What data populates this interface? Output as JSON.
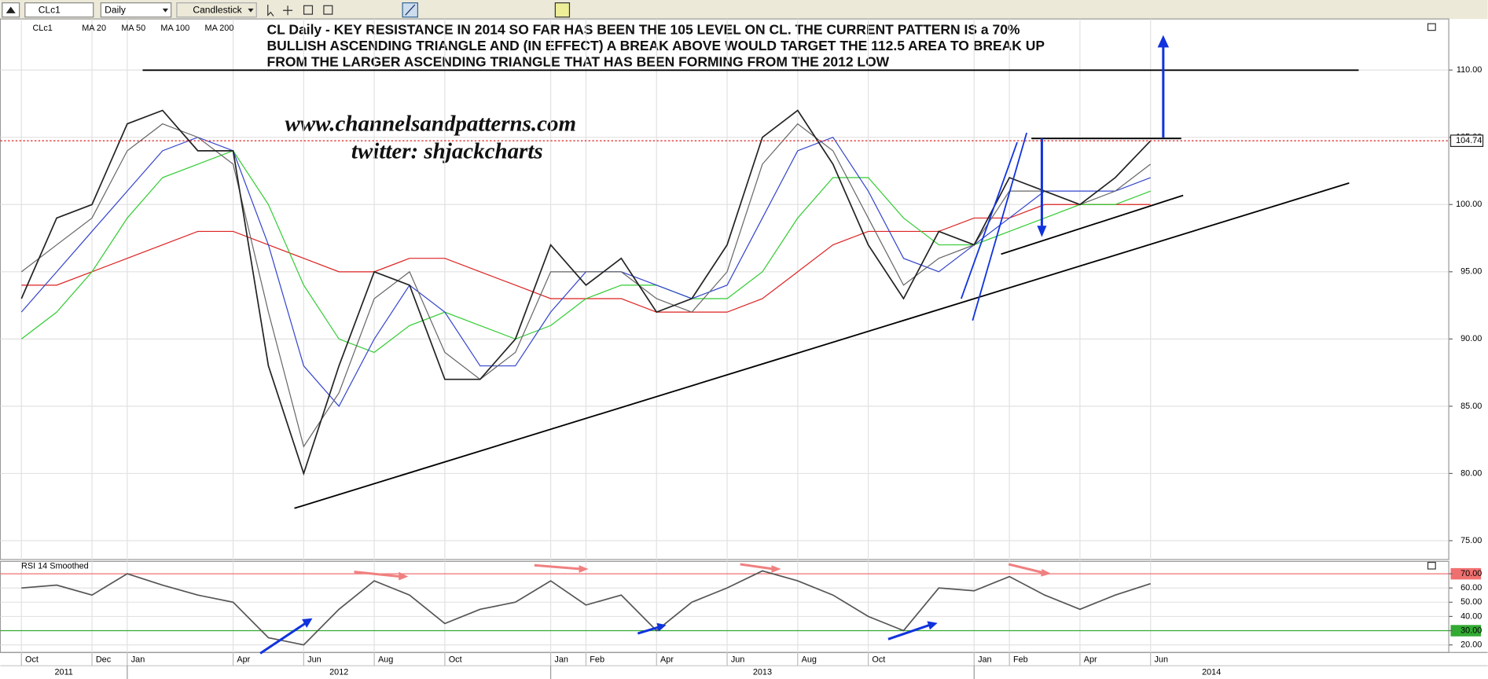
{
  "toolbar": {
    "symbol": "CLc1",
    "interval": "Daily",
    "style": "Candlestick"
  },
  "chart_data": [
    {
      "type": "line",
      "annotations": [
        "CL Daily - KEY RESISTANCE IN 2014 SO FAR HAS BEEN THE 105 LEVEL ON CL. THE CURRENT PATTERN IS a 70%",
        "BULLISH ASCENDING TRIANGLE AND (IN EFFECT) A BREAK ABOVE WOULD TARGET THE 112.5 AREA TO BREAK UP",
        "FROM THE LARGER ASCENDING TRIANGLE THAT HAS BEEN FORMING FROM THE 2012 LOW"
      ],
      "watermark": [
        "www.channelsandpatterns.com",
        "twitter: shjackcharts"
      ],
      "x": [
        "2011-10",
        "2011-11",
        "2011-12",
        "2012-01",
        "2012-02",
        "2012-03",
        "2012-04",
        "2012-05",
        "2012-06",
        "2012-07",
        "2012-08",
        "2012-09",
        "2012-10",
        "2012-11",
        "2012-12",
        "2013-01",
        "2013-02",
        "2013-03",
        "2013-04",
        "2013-05",
        "2013-06",
        "2013-07",
        "2013-08",
        "2013-09",
        "2013-10",
        "2013-11",
        "2013-12",
        "2014-01",
        "2014-02",
        "2014-03",
        "2014-04",
        "2014-05",
        "2014-06"
      ],
      "series": [
        {
          "name": "CLc1",
          "color": "#222222",
          "values": [
            93,
            99,
            100,
            106,
            107,
            104,
            104,
            88,
            80,
            88,
            95,
            94,
            87,
            87,
            90,
            97,
            94,
            96,
            92,
            93,
            97,
            105,
            107,
            103,
            97,
            93,
            98,
            97,
            102,
            101,
            100,
            102,
            104.74
          ]
        },
        {
          "name": "MA 20",
          "color": "#666666",
          "values": [
            95,
            97,
            99,
            104,
            106,
            105,
            103,
            92,
            82,
            86,
            93,
            95,
            89,
            87,
            89,
            95,
            95,
            95,
            93,
            92,
            95,
            103,
            106,
            104,
            99,
            94,
            96,
            97,
            101,
            101,
            100,
            101,
            103
          ]
        },
        {
          "name": "MA 50",
          "color": "#3344cc",
          "values": [
            92,
            95,
            98,
            101,
            104,
            105,
            104,
            97,
            88,
            85,
            90,
            94,
            92,
            88,
            88,
            92,
            95,
            95,
            94,
            93,
            94,
            99,
            104,
            105,
            101,
            96,
            95,
            97,
            99,
            101,
            101,
            101,
            102
          ]
        },
        {
          "name": "MA 100",
          "color": "#33cc33",
          "values": [
            90,
            92,
            95,
            99,
            102,
            103,
            104,
            100,
            94,
            90,
            89,
            91,
            92,
            91,
            90,
            91,
            93,
            94,
            94,
            93,
            93,
            95,
            99,
            102,
            102,
            99,
            97,
            97,
            98,
            99,
            100,
            100,
            101
          ]
        },
        {
          "name": "MA 200",
          "color": "#dd2222",
          "values": [
            94,
            94,
            95,
            96,
            97,
            98,
            98,
            97,
            96,
            95,
            95,
            96,
            96,
            95,
            94,
            93,
            93,
            93,
            92,
            92,
            92,
            93,
            95,
            97,
            98,
            98,
            98,
            99,
            99,
            100,
            100,
            100,
            100
          ]
        }
      ],
      "last_price": 104.74,
      "ylim": [
        73.6,
        113.8
      ],
      "yticks": [
        {
          "value": 75,
          "label": "75.00"
        },
        {
          "value": 80,
          "label": "80.00"
        },
        {
          "value": 85,
          "label": "85.00"
        },
        {
          "value": 90,
          "label": "90.00"
        },
        {
          "value": 95,
          "label": "95.00"
        },
        {
          "value": 100,
          "label": "100.00"
        },
        {
          "value": 105,
          "label": "105.00"
        },
        {
          "value": 110,
          "label": "110.00"
        }
      ],
      "xticks": [
        {
          "value": "2011-10",
          "label": "Oct"
        },
        {
          "value": "2011-12",
          "label": "Dec"
        },
        {
          "value": "2012-01",
          "label": "Jan"
        },
        {
          "value": "2012-04",
          "label": "Apr"
        },
        {
          "value": "2012-06",
          "label": "Jun"
        },
        {
          "value": "2012-08",
          "label": "Aug"
        },
        {
          "value": "2012-10",
          "label": "Oct"
        },
        {
          "value": "2013-01",
          "label": "Jan"
        },
        {
          "value": "2013-02",
          "label": "Feb"
        },
        {
          "value": "2013-04",
          "label": "Apr"
        },
        {
          "value": "2013-06",
          "label": "Jun"
        },
        {
          "value": "2013-08",
          "label": "Aug"
        },
        {
          "value": "2013-10",
          "label": "Oct"
        },
        {
          "value": "2014-01",
          "label": "Jan"
        },
        {
          "value": "2014-02",
          "label": "Feb"
        },
        {
          "value": "2014-04",
          "label": "Apr"
        },
        {
          "value": "2014-06",
          "label": "Jun"
        }
      ],
      "years": [
        {
          "value": "2011-01",
          "label": "2011"
        },
        {
          "value": "2012-01",
          "label": "2012"
        },
        {
          "value": "2013-01",
          "label": "2013"
        },
        {
          "value": "2014-01",
          "label": "2014"
        }
      ],
      "grid": true
    },
    {
      "type": "line",
      "x": [
        "2011-10",
        "2011-11",
        "2011-12",
        "2012-01",
        "2012-02",
        "2012-03",
        "2012-04",
        "2012-05",
        "2012-06",
        "2012-07",
        "2012-08",
        "2012-09",
        "2012-10",
        "2012-11",
        "2012-12",
        "2013-01",
        "2013-02",
        "2013-03",
        "2013-04",
        "2013-05",
        "2013-06",
        "2013-07",
        "2013-08",
        "2013-09",
        "2013-10",
        "2013-11",
        "2013-12",
        "2014-01",
        "2014-02",
        "2014-03",
        "2014-04",
        "2014-05",
        "2014-06"
      ],
      "series": [
        {
          "name": "RSI 14 Smoothed",
          "color": "#555555",
          "values": [
            60,
            62,
            55,
            70,
            62,
            55,
            50,
            25,
            20,
            45,
            65,
            55,
            35,
            45,
            50,
            65,
            48,
            55,
            30,
            50,
            60,
            72,
            65,
            55,
            40,
            30,
            60,
            58,
            68,
            55,
            45,
            55,
            63
          ]
        }
      ],
      "ylim": [
        14.7,
        78.7
      ],
      "yticks": [
        {
          "value": 70,
          "label": "70.00",
          "color": "#f07070"
        },
        {
          "value": 60,
          "label": "60.00"
        },
        {
          "value": 50,
          "label": "50.00"
        },
        {
          "value": 40,
          "label": "40.00"
        },
        {
          "value": 30,
          "label": "30.00",
          "color": "#33aa33"
        },
        {
          "value": 20,
          "label": "20.00"
        }
      ],
      "grid": true
    }
  ]
}
